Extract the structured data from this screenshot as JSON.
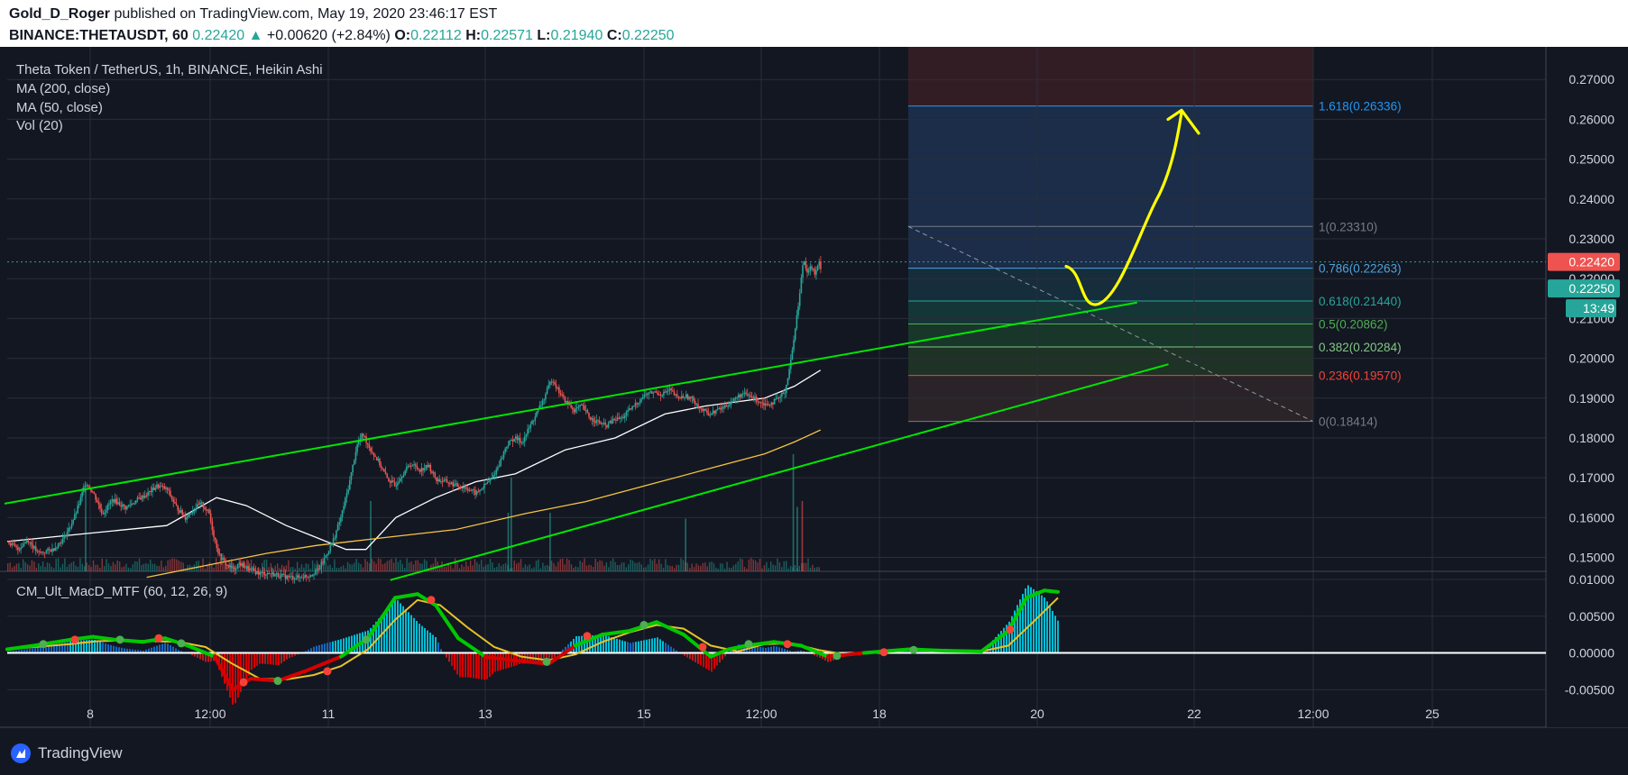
{
  "header": {
    "author": "Gold_D_Roger",
    "published_text": " published on TradingView.com, May 19, 2020 23:46:17 EST",
    "symbol": "BINANCE:THETAUSDT, 60",
    "price": "0.22420",
    "up_arrow": "▲",
    "change": "+0.00620 (+2.84%)",
    "o_label": "O:",
    "o_value": "0.22112",
    "h_label": "H:",
    "h_value": "0.22571",
    "l_label": "L:",
    "l_value": "0.21940",
    "c_label": "C:",
    "c_value": "0.22250"
  },
  "legend": {
    "title": "Theta Token / TetherUS, 1h, BINANCE, Heikin Ashi",
    "ma200": "MA (200, close)",
    "ma50": "MA (50, close)",
    "vol": "Vol (20)",
    "macd": "CM_Ult_MacD_MTF (60, 12, 26, 9)"
  },
  "footer": {
    "brand": "TradingView"
  },
  "colors": {
    "background": "#131722",
    "bull": "#26a69a",
    "bear": "#ef5350",
    "ma50": "#ffffff",
    "ma200": "#f5c542",
    "channel": "#00e600",
    "arrow": "#ffff00",
    "macd_above": "#00c800",
    "macd_below": "#d50000",
    "signal": "#e6c229"
  },
  "chart_data": [
    {
      "type": "candlestick",
      "title": "Theta Token / TetherUS, 1h, BINANCE, Heikin Ashi",
      "x_ticks": [
        "8",
        "12:00",
        "11",
        "13",
        "15",
        "12:00",
        "18",
        "20",
        "22",
        "12:00",
        "25"
      ],
      "y_ticks": [
        "0.27000",
        "0.26000",
        "0.25000",
        "0.24000",
        "0.23000",
        "0.22000",
        "0.21000",
        "0.20000",
        "0.19000",
        "0.18000",
        "0.17000",
        "0.16000",
        "0.15000"
      ],
      "ylim": [
        0.1465,
        0.2782
      ],
      "last_price": "0.22420",
      "close_price": "0.22250",
      "countdown": "13:49",
      "close_path": [
        {
          "t": 0,
          "v": 0.154
        },
        {
          "t": 10,
          "v": 0.152
        },
        {
          "t": 20,
          "v": 0.1545
        },
        {
          "t": 30,
          "v": 0.151
        },
        {
          "t": 45,
          "v": 0.152
        },
        {
          "t": 55,
          "v": 0.1545
        },
        {
          "t": 62,
          "v": 0.1575
        },
        {
          "t": 68,
          "v": 0.161
        },
        {
          "t": 72,
          "v": 0.164
        },
        {
          "t": 78,
          "v": 0.169
        },
        {
          "t": 86,
          "v": 0.166
        },
        {
          "t": 95,
          "v": 0.161
        },
        {
          "t": 105,
          "v": 0.1645
        },
        {
          "t": 118,
          "v": 0.1625
        },
        {
          "t": 130,
          "v": 0.1645
        },
        {
          "t": 140,
          "v": 0.166
        },
        {
          "t": 150,
          "v": 0.168
        },
        {
          "t": 160,
          "v": 0.167
        },
        {
          "t": 168,
          "v": 0.163
        },
        {
          "t": 178,
          "v": 0.16
        },
        {
          "t": 186,
          "v": 0.162
        },
        {
          "t": 194,
          "v": 0.1635
        },
        {
          "t": 202,
          "v": 0.161
        },
        {
          "t": 206,
          "v": 0.156
        },
        {
          "t": 212,
          "v": 0.1505
        },
        {
          "t": 220,
          "v": 0.148
        },
        {
          "t": 226,
          "v": 0.147
        },
        {
          "t": 232,
          "v": 0.1485
        },
        {
          "t": 242,
          "v": 0.147
        },
        {
          "t": 252,
          "v": 0.146
        },
        {
          "t": 262,
          "v": 0.146
        },
        {
          "t": 272,
          "v": 0.1455
        },
        {
          "t": 282,
          "v": 0.145
        },
        {
          "t": 292,
          "v": 0.145
        },
        {
          "t": 302,
          "v": 0.1455
        },
        {
          "t": 312,
          "v": 0.147
        },
        {
          "t": 318,
          "v": 0.15
        },
        {
          "t": 326,
          "v": 0.154
        },
        {
          "t": 334,
          "v": 0.16
        },
        {
          "t": 342,
          "v": 0.168
        },
        {
          "t": 350,
          "v": 0.178
        },
        {
          "t": 356,
          "v": 0.181
        },
        {
          "t": 364,
          "v": 0.177
        },
        {
          "t": 372,
          "v": 0.174
        },
        {
          "t": 380,
          "v": 0.17
        },
        {
          "t": 388,
          "v": 0.168
        },
        {
          "t": 396,
          "v": 0.171
        },
        {
          "t": 404,
          "v": 0.1735
        },
        {
          "t": 414,
          "v": 0.172
        },
        {
          "t": 422,
          "v": 0.173
        },
        {
          "t": 430,
          "v": 0.1695
        },
        {
          "t": 440,
          "v": 0.169
        },
        {
          "t": 450,
          "v": 0.168
        },
        {
          "t": 460,
          "v": 0.1675
        },
        {
          "t": 470,
          "v": 0.166
        },
        {
          "t": 478,
          "v": 0.168
        },
        {
          "t": 486,
          "v": 0.17
        },
        {
          "t": 494,
          "v": 0.174
        },
        {
          "t": 500,
          "v": 0.178
        },
        {
          "t": 508,
          "v": 0.18
        },
        {
          "t": 516,
          "v": 0.179
        },
        {
          "t": 522,
          "v": 0.182
        },
        {
          "t": 530,
          "v": 0.186
        },
        {
          "t": 538,
          "v": 0.19
        },
        {
          "t": 546,
          "v": 0.195
        },
        {
          "t": 552,
          "v": 0.192
        },
        {
          "t": 560,
          "v": 0.189
        },
        {
          "t": 568,
          "v": 0.187
        },
        {
          "t": 576,
          "v": 0.188
        },
        {
          "t": 584,
          "v": 0.185
        },
        {
          "t": 592,
          "v": 0.184
        },
        {
          "t": 600,
          "v": 0.183
        },
        {
          "t": 608,
          "v": 0.1845
        },
        {
          "t": 616,
          "v": 0.185
        },
        {
          "t": 624,
          "v": 0.187
        },
        {
          "t": 632,
          "v": 0.189
        },
        {
          "t": 640,
          "v": 0.191
        },
        {
          "t": 648,
          "v": 0.1915
        },
        {
          "t": 656,
          "v": 0.191
        },
        {
          "t": 664,
          "v": 0.192
        },
        {
          "t": 672,
          "v": 0.19
        },
        {
          "t": 680,
          "v": 0.1905
        },
        {
          "t": 688,
          "v": 0.1895
        },
        {
          "t": 696,
          "v": 0.187
        },
        {
          "t": 704,
          "v": 0.186
        },
        {
          "t": 712,
          "v": 0.187
        },
        {
          "t": 720,
          "v": 0.188
        },
        {
          "t": 728,
          "v": 0.1895
        },
        {
          "t": 736,
          "v": 0.191
        },
        {
          "t": 744,
          "v": 0.1905
        },
        {
          "t": 752,
          "v": 0.1895
        },
        {
          "t": 760,
          "v": 0.1885
        },
        {
          "t": 768,
          "v": 0.189
        },
        {
          "t": 774,
          "v": 0.19
        },
        {
          "t": 780,
          "v": 0.192
        },
        {
          "t": 786,
          "v": 0.2
        },
        {
          "t": 790,
          "v": 0.208
        },
        {
          "t": 794,
          "v": 0.215
        },
        {
          "t": 798,
          "v": 0.225
        },
        {
          "t": 802,
          "v": 0.222
        },
        {
          "t": 806,
          "v": 0.223
        },
        {
          "t": 810,
          "v": 0.221
        },
        {
          "t": 814,
          "v": 0.224
        },
        {
          "t": 816,
          "v": 0.2225
        }
      ],
      "series": [
        {
          "name": "MA (50, close)",
          "points": [
            [
              0,
              0.154
            ],
            [
              80,
              0.156
            ],
            [
              160,
              0.158
            ],
            [
              210,
              0.165
            ],
            [
              240,
              0.163
            ],
            [
              280,
              0.158
            ],
            [
              310,
              0.155
            ],
            [
              340,
              0.152
            ],
            [
              360,
              0.152
            ],
            [
              390,
              0.16
            ],
            [
              430,
              0.165
            ],
            [
              470,
              0.169
            ],
            [
              510,
              0.171
            ],
            [
              560,
              0.177
            ],
            [
              610,
              0.18
            ],
            [
              660,
              0.186
            ],
            [
              700,
              0.188
            ],
            [
              760,
              0.19
            ],
            [
              790,
              0.193
            ],
            [
              816,
              0.197
            ]
          ]
        },
        {
          "name": "MA (200, close)",
          "points": [
            [
              140,
              0.145
            ],
            [
              200,
              0.148
            ],
            [
              260,
              0.151
            ],
            [
              310,
              0.153
            ],
            [
              380,
              0.155
            ],
            [
              450,
              0.157
            ],
            [
              520,
              0.161
            ],
            [
              580,
              0.164
            ],
            [
              640,
              0.168
            ],
            [
              700,
              0.172
            ],
            [
              760,
              0.176
            ],
            [
              790,
              0.179
            ],
            [
              816,
              0.182
            ]
          ]
        }
      ],
      "channel_lines": [
        {
          "from": [
            0,
            0.1635
          ],
          "to": [
            866,
            0.214
          ]
        },
        {
          "from": [
            295,
            0.1443
          ],
          "to": [
            890,
            0.1985
          ]
        }
      ],
      "fibonacci": [
        {
          "label": "1.618(0.26336)",
          "value": 0.26336,
          "color": "#2196f3"
        },
        {
          "label": "1(0.23310)",
          "value": 0.2331,
          "color": "#787b86"
        },
        {
          "label": "0.786(0.22263)",
          "value": 0.22263,
          "color": "#4aa3df"
        },
        {
          "label": "0.618(0.21440)",
          "value": 0.2144,
          "color": "#26a69a"
        },
        {
          "label": "0.5(0.20862)",
          "value": 0.20862,
          "color": "#4caf50"
        },
        {
          "label": "0.382(0.20284)",
          "value": 0.20284,
          "color": "#81c784"
        },
        {
          "label": "0.236(0.19570)",
          "value": 0.1957,
          "color": "#f44336"
        },
        {
          "label": "0(0.18414)",
          "value": 0.18414,
          "color": "#787b86"
        }
      ],
      "volume_spikes": [
        [
          78,
          0.7
        ],
        [
          364,
          0.6
        ],
        [
          502,
          0.5
        ],
        [
          505,
          0.8
        ],
        [
          544,
          0.5
        ],
        [
          680,
          0.45
        ],
        [
          788,
          1.0
        ],
        [
          792,
          0.55
        ],
        [
          797,
          0.6
        ]
      ]
    },
    {
      "type": "area",
      "title": "CM_Ult_MacD_MTF (60, 12, 26, 9)",
      "y_ticks": [
        "0.01000",
        "0.00500",
        "0.00000",
        "-0.00500"
      ],
      "ylim": [
        -0.0068,
        0.0111
      ],
      "macd": [
        [
          0,
          0.0005
        ],
        [
          30,
          0.001
        ],
        [
          70,
          0.0018
        ],
        [
          95,
          0.0022
        ],
        [
          120,
          0.0018
        ],
        [
          150,
          0.0015
        ],
        [
          175,
          0.002
        ],
        [
          200,
          0.001
        ],
        [
          230,
          -0.0005
        ],
        [
          250,
          -0.005
        ],
        [
          270,
          -0.0035
        ],
        [
          300,
          -0.0038
        ],
        [
          330,
          -0.0025
        ],
        [
          370,
          -0.0005
        ],
        [
          400,
          0.002
        ],
        [
          430,
          0.0075
        ],
        [
          455,
          0.008
        ],
        [
          475,
          0.0065
        ],
        [
          500,
          0.002
        ],
        [
          530,
          -0.0005
        ],
        [
          560,
          -0.001
        ],
        [
          600,
          -0.0015
        ],
        [
          630,
          0.001
        ],
        [
          660,
          0.0025
        ],
        [
          690,
          0.003
        ],
        [
          720,
          0.0042
        ],
        [
          750,
          0.0025
        ],
        [
          780,
          -0.0005
        ],
        [
          800,
          0.0005
        ],
        [
          820,
          0.001
        ],
        [
          850,
          0.0015
        ],
        [
          880,
          0.001
        ],
        [
          910,
          -0.0005
        ],
        [
          950,
          0.0
        ],
        [
          1000,
          0.0005
        ],
        [
          1040,
          0.0003
        ],
        [
          1080,
          0.0002
        ],
        [
          1110,
          0.003
        ],
        [
          1130,
          0.0075
        ],
        [
          1150,
          0.0085
        ],
        [
          1165,
          0.0083
        ]
      ],
      "signal": [
        [
          0,
          0.0005
        ],
        [
          30,
          0.0008
        ],
        [
          70,
          0.0012
        ],
        [
          100,
          0.0016
        ],
        [
          130,
          0.0017
        ],
        [
          160,
          0.0016
        ],
        [
          190,
          0.0015
        ],
        [
          220,
          0.0008
        ],
        [
          250,
          -0.0015
        ],
        [
          280,
          -0.0035
        ],
        [
          310,
          -0.0036
        ],
        [
          340,
          -0.003
        ],
        [
          370,
          -0.0018
        ],
        [
          400,
          0.0005
        ],
        [
          430,
          0.0045
        ],
        [
          455,
          0.0072
        ],
        [
          480,
          0.0065
        ],
        [
          510,
          0.0035
        ],
        [
          540,
          0.0008
        ],
        [
          570,
          -0.0005
        ],
        [
          600,
          -0.001
        ],
        [
          630,
          -0.0002
        ],
        [
          660,
          0.0015
        ],
        [
          690,
          0.0028
        ],
        [
          720,
          0.0038
        ],
        [
          750,
          0.0033
        ],
        [
          780,
          0.001
        ],
        [
          810,
          0.0002
        ],
        [
          840,
          0.0012
        ],
        [
          870,
          0.0013
        ],
        [
          900,
          0.0004
        ],
        [
          930,
          -0.0002
        ],
        [
          960,
          0.0
        ],
        [
          1000,
          0.0004
        ],
        [
          1040,
          0.0004
        ],
        [
          1080,
          0.0002
        ],
        [
          1110,
          0.001
        ],
        [
          1140,
          0.0045
        ],
        [
          1165,
          0.0075
        ]
      ],
      "cross_points": [
        [
          40,
          0.0012
        ],
        [
          75,
          0.0018
        ],
        [
          125,
          0.0018
        ],
        [
          168,
          0.002
        ],
        [
          193,
          0.0013
        ],
        [
          262,
          -0.004
        ],
        [
          300,
          -0.0038
        ],
        [
          355,
          -0.0025
        ],
        [
          398,
          0.0018
        ],
        [
          470,
          0.0072
        ],
        [
          598,
          -0.0012
        ],
        [
          643,
          0.0023
        ],
        [
          706,
          0.0038
        ],
        [
          771,
          0.0008
        ],
        [
          822,
          0.0012
        ],
        [
          865,
          0.0012
        ],
        [
          920,
          -0.0004
        ],
        [
          972,
          0.0001
        ],
        [
          1005,
          0.0004
        ],
        [
          1112,
          0.0032
        ]
      ]
    }
  ]
}
